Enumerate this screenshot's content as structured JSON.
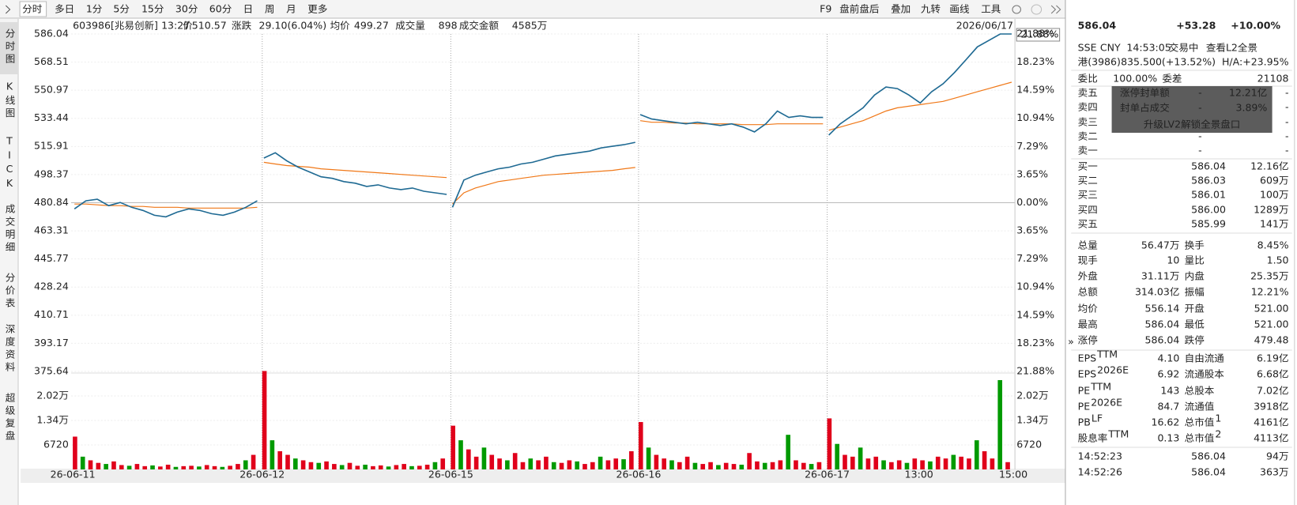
{
  "toolbar": {
    "tabs": [
      "分时",
      "多日",
      "1分",
      "5分",
      "15分",
      "30分",
      "60分",
      "日",
      "周",
      "月",
      "更多"
    ],
    "tools": [
      "F9",
      "盘前盘后",
      "叠加",
      "九转",
      "画线",
      "工具"
    ]
  },
  "side_tabs": [
    "分时图",
    "K线图",
    "TICK",
    "成交明细",
    "分价表",
    "深度资料",
    "超级复盘"
  ],
  "info": {
    "code": "603986[兆易创新]",
    "time": "13:27",
    "price_label": "价",
    "price": "510.57",
    "change_label": "涨跌",
    "change": "29.10(6.04%)",
    "avg_label": "均价",
    "avg": "499.27",
    "vol_label": "成交量",
    "vol": "898",
    "amount_label": "成交金额",
    "amount": "4585万",
    "date": "2026/06/17",
    "pct": "21.88%"
  },
  "chart": {
    "prev_close": 480.84,
    "ylim": [
      375.64,
      586.04
    ],
    "yticks": [
      586.04,
      568.51,
      550.97,
      533.44,
      515.91,
      498.37,
      480.84,
      463.31,
      445.77,
      428.24,
      410.71,
      393.17,
      375.64
    ],
    "pct_ylim": [
      -21.88,
      21.88
    ],
    "pct_ticks": [
      {
        "value": 21.88,
        "label": "21.88%"
      },
      {
        "value": 18.23,
        "label": "18.23%"
      },
      {
        "value": 14.59,
        "label": "14.59%"
      },
      {
        "value": 10.94,
        "label": "10.94%"
      },
      {
        "value": 7.29,
        "label": "7.29%"
      },
      {
        "value": 3.65,
        "label": "3.65%"
      },
      {
        "value": 0,
        "label": "0.00%"
      },
      {
        "value": -3.65,
        "label": "3.65%"
      },
      {
        "value": -7.29,
        "label": "7.29%"
      },
      {
        "value": -10.94,
        "label": "10.94%"
      },
      {
        "value": -14.59,
        "label": "14.59%"
      },
      {
        "value": -18.23,
        "label": "18.23%"
      },
      {
        "value": -21.88,
        "label": "21.88%"
      }
    ],
    "vol_ylim": [
      0,
      26880
    ],
    "vol_ticks": [
      {
        "value": 20160,
        "label": "2.02万"
      },
      {
        "value": 13440,
        "label": "1.34万"
      },
      6720
    ],
    "xlabels": [
      "26-06-11",
      "26-06-12",
      "26-06-15",
      "26-06-16",
      "26-06-17",
      "13:00",
      "15:00"
    ],
    "price_color": "#1f6a93",
    "avg_color": "#f07818",
    "up_color": "#e0001b",
    "down_color": "#009a00",
    "days": [
      {
        "price": [
          477,
          482,
          483,
          479,
          481,
          478,
          476,
          473,
          472,
          475,
          477,
          476,
          474,
          473,
          475,
          478,
          482
        ],
        "avg": [
          480,
          480,
          479.5,
          479,
          479,
          478.5,
          478.5,
          478,
          478,
          478,
          477.5,
          477.5,
          477.5,
          477.5,
          477.5,
          477.5,
          478
        ],
        "volume": [
          9000,
          3500,
          2500,
          1800,
          1500,
          2200,
          1200,
          1000,
          1500,
          900,
          1100,
          800,
          1300,
          700,
          900,
          1000,
          800,
          1200,
          900,
          700,
          1000,
          1500,
          2500,
          4000
        ]
      },
      {
        "price": [
          508.7,
          512,
          507,
          503,
          500,
          497,
          496,
          494,
          493,
          491,
          492,
          490,
          489,
          490,
          488,
          487,
          486
        ],
        "avg": [
          506,
          505,
          504,
          503.5,
          503,
          502,
          501.5,
          501,
          500.5,
          500,
          499.5,
          499,
          498.5,
          498,
          497.5,
          497,
          496.5
        ],
        "volume": [
          27000,
          8000,
          5000,
          4000,
          3000,
          2500,
          2000,
          1800,
          2200,
          1500,
          1200,
          1800,
          1000,
          1300,
          900,
          1100,
          800,
          1200,
          1500,
          900,
          1000,
          1300,
          2000,
          3000
        ]
      },
      {
        "price": [
          478,
          495,
          498,
          500,
          502,
          503,
          505,
          506,
          508,
          510,
          511,
          512,
          513,
          515,
          516,
          517,
          518.5
        ],
        "avg": [
          480,
          487,
          490,
          492,
          494,
          495,
          496,
          497,
          498,
          498.5,
          499,
          499.5,
          500,
          500.5,
          501,
          502,
          502.8
        ],
        "volume": [
          12000,
          8000,
          5500,
          3500,
          6000,
          4000,
          3000,
          2500,
          4500,
          2000,
          3000,
          2500,
          3500,
          2000,
          1800,
          2500,
          2200,
          1500,
          2000,
          3500,
          2500,
          3000,
          2800,
          5000
        ]
      },
      {
        "price": [
          535.8,
          533,
          532,
          531,
          530,
          531,
          530,
          529,
          530,
          528,
          525,
          530,
          538,
          534,
          535,
          534,
          534
        ],
        "avg": [
          532,
          531,
          531,
          530.5,
          530.5,
          530,
          530,
          530,
          530,
          529.5,
          529.5,
          529.5,
          530,
          530,
          530,
          530,
          530
        ],
        "volume": [
          13000,
          6000,
          4000,
          3000,
          2500,
          2000,
          3500,
          1800,
          1500,
          2000,
          1200,
          1800,
          1500,
          1300,
          4500,
          2200,
          1800,
          2000,
          2500,
          9500,
          2500,
          1800,
          1500,
          2000
        ]
      },
      {
        "price": [
          523,
          530,
          535,
          540,
          548,
          553,
          552,
          548,
          543,
          550,
          555,
          562,
          570,
          578,
          582,
          586.04,
          586.04
        ],
        "avg": [
          526,
          528,
          530,
          532,
          535,
          538,
          540,
          541,
          542,
          543,
          544,
          546,
          548,
          550,
          552,
          554,
          556
        ],
        "volume": [
          14000,
          7000,
          4000,
          3500,
          6000,
          3000,
          3500,
          2500,
          2000,
          2500,
          1800,
          3000,
          2500,
          2200,
          3500,
          3000,
          4000,
          3500,
          3000,
          8000,
          5000,
          3000,
          24500,
          2000
        ]
      }
    ]
  },
  "quote": {
    "price": "586.04",
    "change": "+53.28",
    "pct": "+10.00%",
    "status": [
      "SSE",
      "CNY",
      "14:53:05",
      "交易中"
    ],
    "l2": "查看L2全景",
    "hk_label": "港(3986)",
    "hk_value": "835.500(+13.52%)",
    "ha": "H/A:+23.95%"
  },
  "order_ratio": {
    "label": "委比",
    "value": "100.00%",
    "diff_label": "委差",
    "diff": "21108"
  },
  "asks": [
    {
      "label": "卖五",
      "price": "-",
      "amount": "-"
    },
    {
      "label": "卖四",
      "price": "-",
      "amount": "-"
    },
    {
      "label": "卖三",
      "price": "-",
      "amount": "-"
    },
    {
      "label": "卖二",
      "price": "-",
      "amount": "-"
    },
    {
      "label": "卖一",
      "price": "-",
      "amount": "-"
    }
  ],
  "ask_overlay": {
    "rows": [
      [
        "涨停封单额",
        "-",
        "12.21亿"
      ],
      [
        "封单占成交",
        "-",
        "3.89%"
      ]
    ],
    "upgrade": "升级LV2解锁全景盘口"
  },
  "bids": [
    {
      "label": "买一",
      "price": "586.04",
      "amount": "12.16亿"
    },
    {
      "label": "买二",
      "price": "586.03",
      "amount": "609万"
    },
    {
      "label": "买三",
      "price": "586.01",
      "amount": "100万"
    },
    {
      "label": "买四",
      "price": "586.00",
      "amount": "1289万"
    },
    {
      "label": "买五",
      "price": "585.99",
      "amount": "141万"
    }
  ],
  "stats": [
    {
      "l1": "总量",
      "v1": "56.47万",
      "l2": "换手",
      "v2": "8.45%"
    },
    {
      "l1": "现手",
      "v1": "10",
      "l2": "量比",
      "v2": "1.50"
    },
    {
      "l1": "外盘",
      "v1": "31.11万",
      "c1": "#e0001b",
      "l2": "内盘",
      "v2": "25.35万",
      "c2": "#009a00"
    },
    {
      "l1": "总额",
      "v1": "314.03亿",
      "l2": "振幅",
      "v2": "12.21%"
    },
    {
      "l1": "均价",
      "v1": "556.14",
      "c1": "#e0001b",
      "l2": "开盘",
      "v2": "521.00",
      "c2": "#e0001b"
    },
    {
      "l1": "最高",
      "v1": "586.04",
      "c1": "#e0001b",
      "l2": "最低",
      "v2": "521.00",
      "c2": "#e0001b"
    },
    {
      "l1": "涨停",
      "v1": "586.04",
      "c1": "#e0001b",
      "l2": "跌停",
      "v2": "479.48",
      "c2": "#009a00"
    }
  ],
  "fundamentals": [
    {
      "l1": "EPS",
      "s1": "TTM",
      "v1": "4.10",
      "l2": "自由流通",
      "v2": "6.19亿"
    },
    {
      "l1": "EPS",
      "s1": "2026E",
      "v1": "6.92",
      "l2": "流通股本",
      "v2": "6.68亿"
    },
    {
      "l1": "PE",
      "s1": "TTM",
      "v1": "143",
      "l2": "总股本",
      "v2": "7.02亿"
    },
    {
      "l1": "PE",
      "s1": "2026E",
      "v1": "84.7",
      "l2": "流通值",
      "v2": "3918亿"
    },
    {
      "l1": "PB",
      "s1": "LF",
      "v1": "16.62",
      "l2": "总市值",
      "s2": "1",
      "v2": "4161亿"
    },
    {
      "l1": "股息率",
      "s1": "TTM",
      "v1": "0.13",
      "l2": "总市值",
      "s2": "2",
      "v2": "4113亿"
    }
  ],
  "trades": [
    {
      "time": "14:52:23",
      "price": "586.04",
      "vol": "94万"
    },
    {
      "time": "14:52:26",
      "price": "586.04",
      "vol": "363万"
    }
  ]
}
